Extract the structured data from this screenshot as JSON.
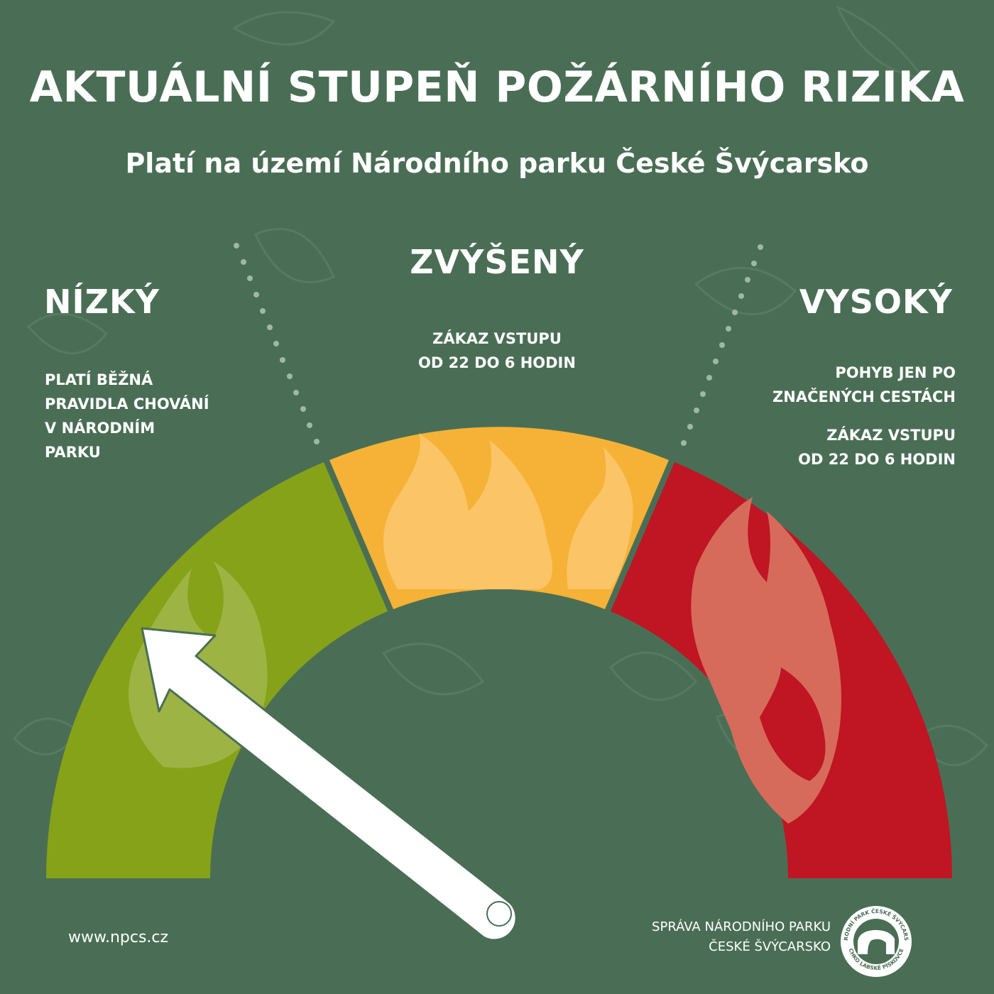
{
  "title": "AKTUÁLNÍ STUPEŇ POŽÁRNÍHO RIZIKA",
  "subtitle": "Platí na území Národního parku České Švýcarsko",
  "levels": {
    "low": {
      "label": "NÍZKÝ",
      "rule_lines": [
        "PLATÍ BĚŽNÁ",
        "PRAVIDLA CHOVÁNÍ",
        "V NÁRODNÍM",
        "PARKU"
      ],
      "color": "#86a218"
    },
    "elevated": {
      "label": "ZVÝŠENÝ",
      "rule_lines": [
        "ZÁKAZ VSTUPU",
        "OD 22 DO 6 HODIN"
      ],
      "color": "#f6b236"
    },
    "high": {
      "label": "VYSOKÝ",
      "rule1_lines": [
        "POHYB JEN PO",
        "ZNAČENÝCH CESTÁCH"
      ],
      "rule2_lines": [
        "ZÁKAZ VSTUPU",
        "OD 22 DO 6 HODIN"
      ],
      "color": "#c01522"
    }
  },
  "current_level": "NÍZKÝ",
  "footer": {
    "url": "www.npcs.cz",
    "org_lines": [
      "SPRÁVA NÁRODNÍHO PARKU",
      "ČESKÉ ŠVÝCARSKO"
    ]
  },
  "logo": {
    "ring_text_top": "NÁRODNÍ PARK ČESKÉ ŠVÝCARSKO",
    "ring_text_bottom": "CHKO LABSKÉ PÍSKOVCE"
  },
  "colors": {
    "background": "#4a6e55",
    "needle": "#ffffff"
  }
}
